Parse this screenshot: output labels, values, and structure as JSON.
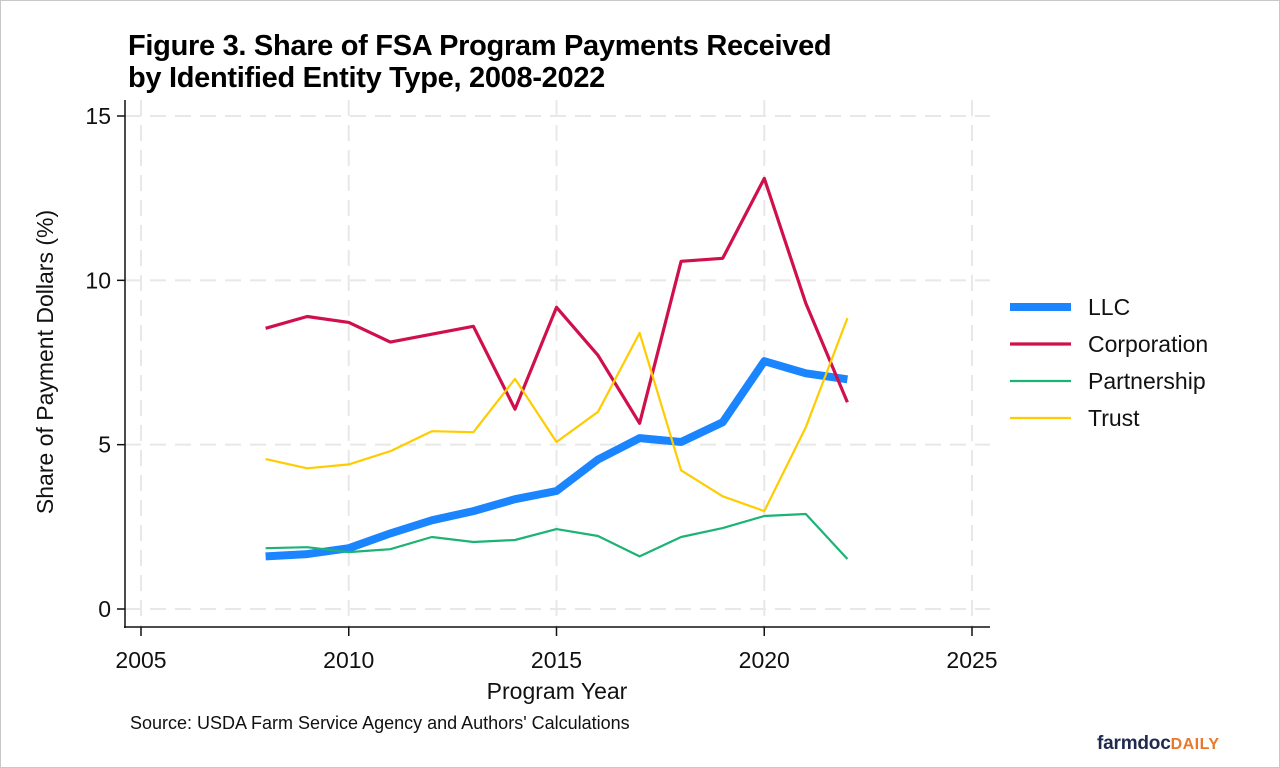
{
  "title_lines": [
    "Figure 3. Share of FSA Program Payments Received",
    "by Identified Entity Type, 2008-2022"
  ],
  "source": "Source: USDA Farm Service Agency and Authors' Calculations",
  "brand": {
    "part1": "farmdoc",
    "part2": "DAILY"
  },
  "chart_data": {
    "type": "line",
    "title": "Figure 3. Share of FSA Program Payments Received by Identified Entity Type, 2008-2022",
    "xlabel": "Program Year",
    "ylabel": "Share of Payment Dollars (%)",
    "xlim": [
      2005,
      2025
    ],
    "ylim": [
      0,
      15
    ],
    "xticks": [
      2005,
      2010,
      2015,
      2020,
      2025
    ],
    "yticks": [
      0,
      5,
      10,
      15
    ],
    "grid": true,
    "legend_position": "right",
    "x": [
      2008,
      2009,
      2010,
      2011,
      2012,
      2013,
      2014,
      2015,
      2016,
      2017,
      2018,
      2019,
      2020,
      2021,
      2022
    ],
    "series": [
      {
        "name": "LLC",
        "color": "#1a85ff",
        "weight": "thick",
        "values": [
          1.6,
          1.67,
          1.85,
          2.3,
          2.7,
          2.98,
          3.34,
          3.59,
          4.55,
          5.2,
          5.08,
          5.68,
          7.54,
          7.17,
          6.99
        ]
      },
      {
        "name": "Corporation",
        "color": "#d0104c",
        "weight": "medium",
        "values": [
          8.54,
          8.9,
          8.72,
          8.12,
          8.36,
          8.6,
          6.08,
          9.18,
          7.72,
          5.65,
          10.58,
          10.67,
          13.1,
          9.3,
          6.29
        ]
      },
      {
        "name": "Partnership",
        "color": "#1cb374",
        "weight": "thin",
        "values": [
          1.85,
          1.88,
          1.73,
          1.82,
          2.19,
          2.04,
          2.1,
          2.43,
          2.22,
          1.6,
          2.19,
          2.46,
          2.83,
          2.89,
          1.52
        ]
      },
      {
        "name": "Trust",
        "color": "#ffcc00",
        "weight": "thin",
        "values": [
          4.56,
          4.28,
          4.4,
          4.8,
          5.41,
          5.38,
          7.0,
          5.08,
          6.0,
          8.4,
          4.22,
          3.43,
          2.98,
          5.53,
          8.85
        ]
      }
    ]
  }
}
